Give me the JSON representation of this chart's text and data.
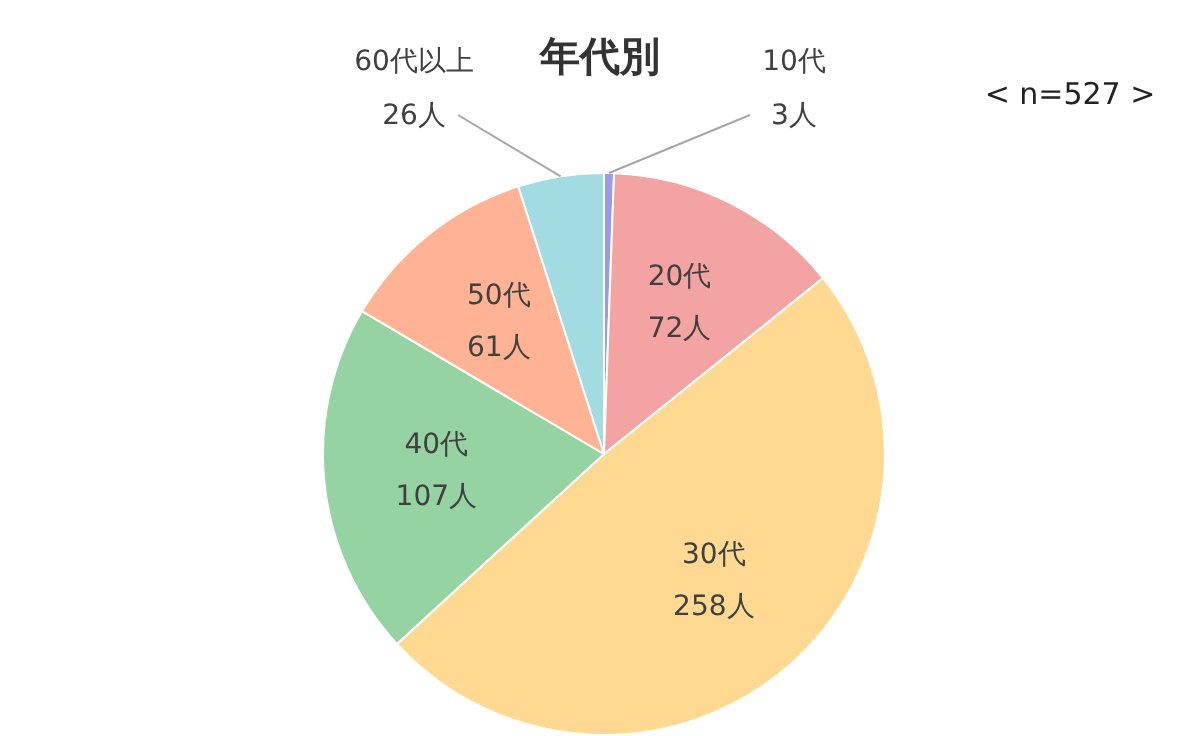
{
  "chart_data": {
    "type": "pie",
    "title": "年代別",
    "annotations": [
      "< n=527 >"
    ],
    "categories": [
      "10代",
      "20代",
      "30代",
      "40代",
      "50代",
      "60代以上"
    ],
    "values": [
      3,
      72,
      258,
      107,
      61,
      26
    ],
    "value_labels": [
      "3人",
      "72人",
      "258人",
      "107人",
      "61人",
      "26人"
    ],
    "colors": [
      "#9a9ae8",
      "#f4a3a3",
      "#ffd992",
      "#95d3a2",
      "#ffb394",
      "#a3dbe3"
    ],
    "legend": false
  }
}
